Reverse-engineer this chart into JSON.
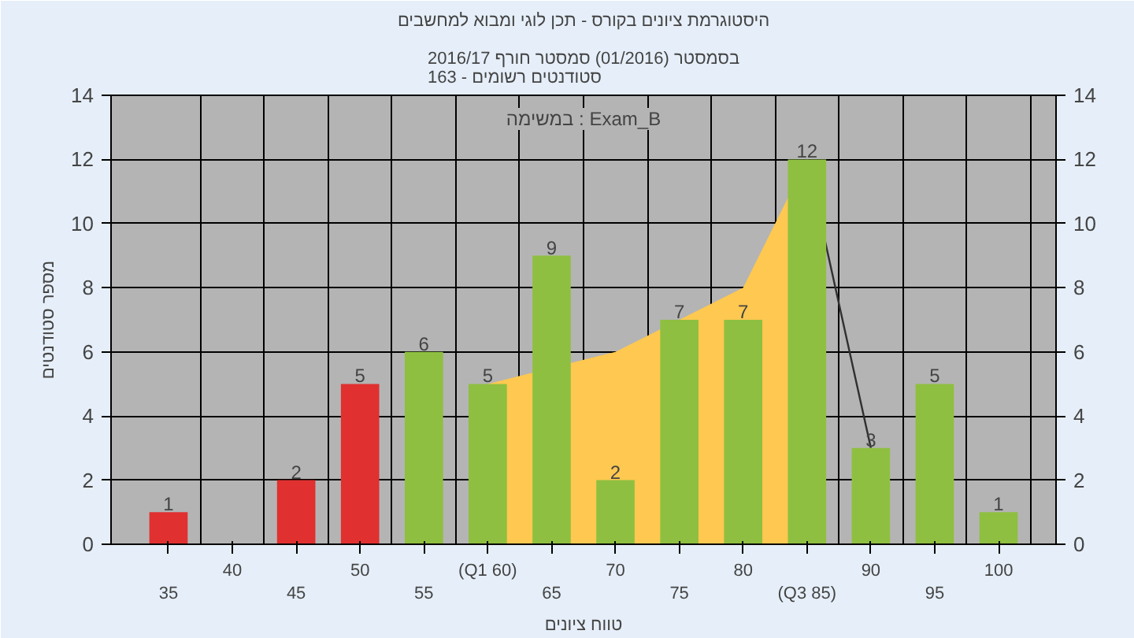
{
  "chart_data": {
    "type": "bar",
    "title": "היסטוגרמת ציונים בקורס - תכן לוגי ומבוא למחשבים",
    "subtitle": "בסמסטר (01/2016) סמסטר חורף 2016/17\nסטודנטים רשומים - 163",
    "xlabel": "טווח ציונים",
    "ylabel": "מספר סטודנטים",
    "annotations": [
      "במשימה : Exam_B"
    ],
    "categories": [
      "35",
      "40",
      "45",
      "50",
      "55",
      "(Q1 60)",
      "65",
      "70",
      "75",
      "80",
      "(Q3 85)",
      "90",
      "95",
      "100"
    ],
    "series": [
      {
        "type": "area",
        "color": "#ffc850",
        "values": [
          null,
          null,
          null,
          null,
          null,
          5,
          null,
          6,
          null,
          8,
          12,
          null,
          null,
          null
        ]
      },
      {
        "type": "line",
        "color": "#303030",
        "values": [
          null,
          null,
          null,
          null,
          null,
          null,
          null,
          null,
          null,
          null,
          12,
          3,
          null,
          null
        ]
      },
      {
        "colors": [
          "#e03030",
          "#e03030",
          "#e03030",
          "#e03030",
          "#8fbf40",
          "#8fbf40",
          "#8fbf40",
          "#8fbf40",
          "#8fbf40",
          "#8fbf40",
          "#8fbf40",
          "#8fbf40",
          "#8fbf40",
          "#8fbf40"
        ],
        "values": [
          1,
          0,
          2,
          5,
          6,
          5,
          9,
          2,
          7,
          7,
          12,
          3,
          5,
          1
        ],
        "value_labels": [
          "1",
          null,
          "2",
          "5",
          "6",
          "5",
          "9",
          "2",
          "7",
          "7",
          "12",
          "3",
          "5",
          "1"
        ]
      }
    ],
    "ylim": [
      0,
      14
    ],
    "yticks": [
      0,
      2,
      4,
      6,
      8,
      10,
      12,
      14
    ],
    "y2lim": [
      0,
      14
    ],
    "y2ticks": [
      0,
      2,
      4,
      6,
      8,
      10,
      12,
      14
    ],
    "grid": true
  }
}
